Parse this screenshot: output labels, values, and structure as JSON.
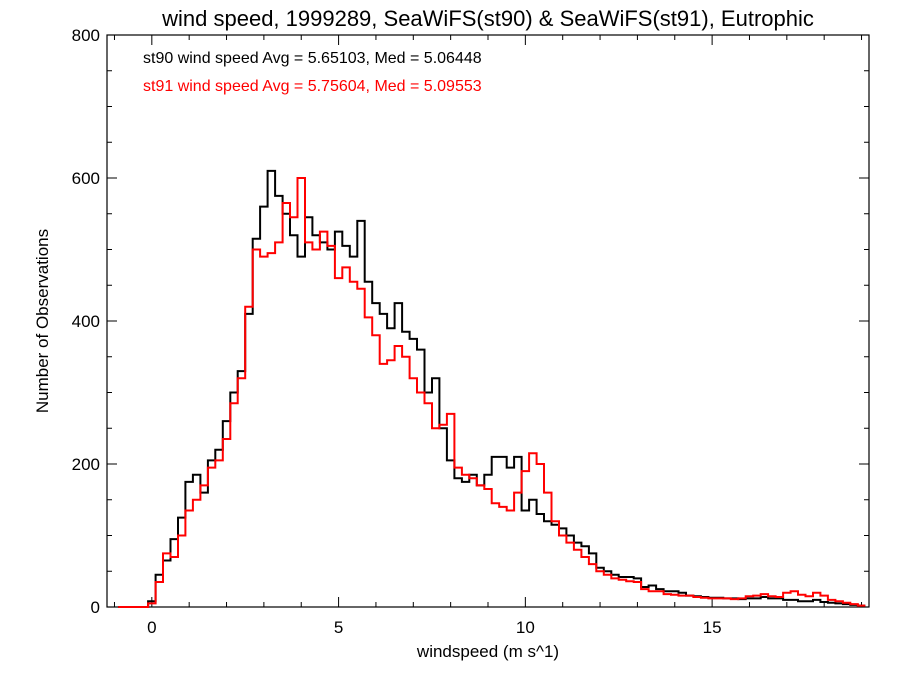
{
  "chart_data": {
    "type": "line",
    "step": true,
    "title": "wind speed, 1999289, SeaWiFS(st90) & SeaWiFS(st91), Eutrophic",
    "xlabel": "windspeed (m s^1)",
    "ylabel": "Number of Observations",
    "xlim": [
      -1.2,
      19.2
    ],
    "ylim": [
      0,
      800
    ],
    "xticks": [
      0,
      5,
      10,
      15
    ],
    "xtick_labels": [
      "0",
      "5",
      "10",
      "15"
    ],
    "yticks": [
      0,
      200,
      400,
      600,
      800
    ],
    "ytick_labels": [
      "0",
      "200",
      "400",
      "600",
      "800"
    ],
    "grid": false,
    "x": [
      -0.8,
      -0.6,
      -0.4,
      -0.2,
      0.0,
      0.2,
      0.4,
      0.6,
      0.8,
      1.0,
      1.2,
      1.4,
      1.6,
      1.8,
      2.0,
      2.2,
      2.4,
      2.6,
      2.8,
      3.0,
      3.2,
      3.4,
      3.6,
      3.8,
      4.0,
      4.2,
      4.4,
      4.6,
      4.8,
      5.0,
      5.2,
      5.4,
      5.6,
      5.8,
      6.0,
      6.2,
      6.4,
      6.6,
      6.8,
      7.0,
      7.2,
      7.4,
      7.6,
      7.8,
      8.0,
      8.2,
      8.4,
      8.6,
      8.8,
      9.0,
      9.2,
      9.4,
      9.6,
      9.8,
      10.0,
      10.2,
      10.4,
      10.6,
      10.8,
      11.0,
      11.2,
      11.4,
      11.6,
      11.8,
      12.0,
      12.2,
      12.4,
      12.6,
      12.8,
      13.0,
      13.2,
      13.4,
      13.6,
      13.8,
      14.0,
      14.2,
      14.4,
      14.6,
      14.8,
      15.0,
      15.2,
      15.4,
      15.6,
      15.8,
      16.0,
      16.2,
      16.4,
      16.6,
      16.8,
      17.0,
      17.2,
      17.4,
      17.6,
      17.8,
      18.0,
      18.2,
      18.4,
      18.6,
      18.8,
      19.0
    ],
    "series": [
      {
        "name": "st90",
        "color": "#000000",
        "values": [
          0,
          0,
          0,
          0,
          8,
          45,
          65,
          95,
          125,
          175,
          185,
          160,
          205,
          220,
          260,
          300,
          330,
          410,
          515,
          560,
          610,
          575,
          550,
          520,
          490,
          545,
          520,
          510,
          500,
          525,
          505,
          490,
          540,
          455,
          425,
          410,
          390,
          425,
          385,
          375,
          360,
          300,
          320,
          250,
          205,
          180,
          175,
          185,
          170,
          185,
          210,
          210,
          195,
          210,
          135,
          150,
          130,
          120,
          115,
          110,
          100,
          90,
          85,
          75,
          55,
          50,
          45,
          42,
          42,
          40,
          28,
          30,
          25,
          22,
          22,
          20,
          16,
          15,
          14,
          13,
          13,
          12,
          12,
          11,
          12,
          12,
          14,
          12,
          12,
          10,
          10,
          8,
          8,
          10,
          7,
          6,
          5,
          4,
          3,
          2
        ]
      },
      {
        "name": "st91",
        "color": "#ff0000",
        "values": [
          0,
          0,
          0,
          0,
          5,
          35,
          75,
          70,
          100,
          135,
          150,
          170,
          195,
          205,
          235,
          285,
          320,
          420,
          500,
          490,
          495,
          510,
          565,
          545,
          600,
          510,
          500,
          525,
          505,
          460,
          475,
          455,
          445,
          405,
          380,
          340,
          345,
          365,
          350,
          320,
          300,
          285,
          250,
          255,
          270,
          195,
          185,
          180,
          170,
          165,
          145,
          140,
          135,
          160,
          190,
          215,
          200,
          160,
          120,
          100,
          90,
          80,
          70,
          60,
          50,
          45,
          40,
          38,
          36,
          35,
          25,
          22,
          22,
          18,
          17,
          16,
          16,
          14,
          13,
          12,
          12,
          12,
          11,
          12,
          15,
          16,
          18,
          15,
          14,
          20,
          22,
          17,
          15,
          20,
          16,
          10,
          8,
          6,
          4,
          2
        ]
      }
    ],
    "annotations": [
      {
        "text": "st90 wind speed Avg = 5.65103, Med = 5.06448",
        "color": "#000000"
      },
      {
        "text": "st91 wind speed Avg = 5.75604, Med = 5.09553",
        "color": "#ff0000"
      }
    ]
  }
}
